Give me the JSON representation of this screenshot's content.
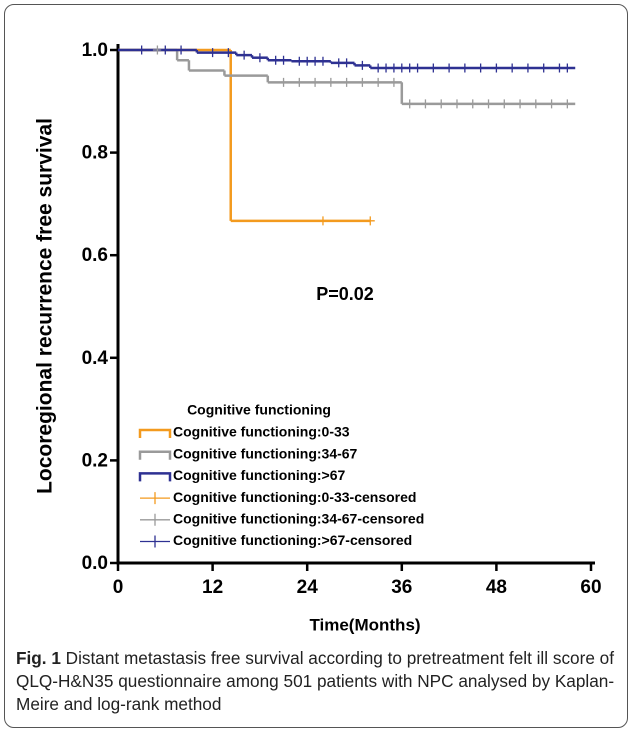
{
  "chart_data": {
    "type": "step",
    "x_label": "Time(Months)",
    "y_label": "Locoregional recurrence free survival",
    "annotation": "P=0.02",
    "legend_title": "Cognitive functioning",
    "legend_position": "lower-left",
    "xlim": [
      0,
      60
    ],
    "xticks": [
      0,
      12,
      24,
      36,
      48,
      60
    ],
    "ylim": [
      0,
      1
    ],
    "yticks": [
      {
        "value": 0,
        "label": "0.0"
      },
      0.2,
      0.4,
      0.6,
      0.8,
      {
        "value": 1,
        "label": "1.0"
      }
    ],
    "series": [
      {
        "name": "Cognitive functioning:0-33",
        "color": "#f39a1e",
        "x": [
          0,
          14.3,
          32
        ],
        "values": [
          1,
          0.667,
          0.667
        ]
      },
      {
        "name": "Cognitive functioning:34-67",
        "color": "#9a9a9a",
        "x": [
          0,
          7.5,
          9,
          13.5,
          19,
          36,
          58
        ],
        "values": [
          1,
          0.98,
          0.96,
          0.95,
          0.937,
          0.895,
          0.895
        ]
      },
      {
        "name": "Cognitive functioning:>67",
        "color": "#2e3192",
        "x": [
          0,
          10,
          15,
          17,
          19,
          22,
          27,
          30,
          32,
          58
        ],
        "values": [
          1,
          0.995,
          0.99,
          0.985,
          0.98,
          0.978,
          0.975,
          0.97,
          0.965,
          0.965
        ]
      }
    ],
    "censored_series": [
      {
        "name": "Cognitive functioning:0-33-censored",
        "color": "#f39a1e",
        "x": [
          26,
          32
        ],
        "values": [
          0.667,
          0.667
        ]
      },
      {
        "name": "Cognitive functioning:34-67-censored",
        "color": "#9a9a9a",
        "x": [
          5,
          21,
          23,
          25,
          27,
          29,
          31,
          33,
          35,
          37,
          39,
          41,
          43,
          45,
          47,
          49,
          51,
          53,
          55,
          57
        ],
        "values": [
          1,
          0.937,
          0.937,
          0.937,
          0.937,
          0.937,
          0.937,
          0.937,
          0.937,
          0.895,
          0.895,
          0.895,
          0.895,
          0.895,
          0.895,
          0.895,
          0.895,
          0.895,
          0.895,
          0.895
        ]
      },
      {
        "name": "Cognitive functioning:>67-censored",
        "color": "#2e3192",
        "x": [
          3,
          6,
          8,
          12,
          14,
          16,
          18,
          20,
          21,
          23,
          24,
          25,
          26,
          28,
          29,
          31,
          33,
          34,
          35,
          36,
          37,
          38,
          40,
          42,
          44,
          46,
          48,
          50,
          52,
          54,
          56,
          57
        ],
        "values": [
          1,
          1,
          1,
          0.995,
          0.995,
          0.99,
          0.985,
          0.98,
          0.98,
          0.978,
          0.978,
          0.978,
          0.978,
          0.975,
          0.975,
          0.97,
          0.965,
          0.965,
          0.965,
          0.965,
          0.965,
          0.965,
          0.965,
          0.965,
          0.965,
          0.965,
          0.965,
          0.965,
          0.965,
          0.965,
          0.965,
          0.965
        ]
      }
    ]
  },
  "caption": {
    "label": "Fig. 1",
    "text": "Distant metastasis free survival according to pretreatment felt ill score of QLQ-H&N35 questionnaire among 501 patients with NPC analysed by Kaplan-Meire and log-rank method"
  }
}
